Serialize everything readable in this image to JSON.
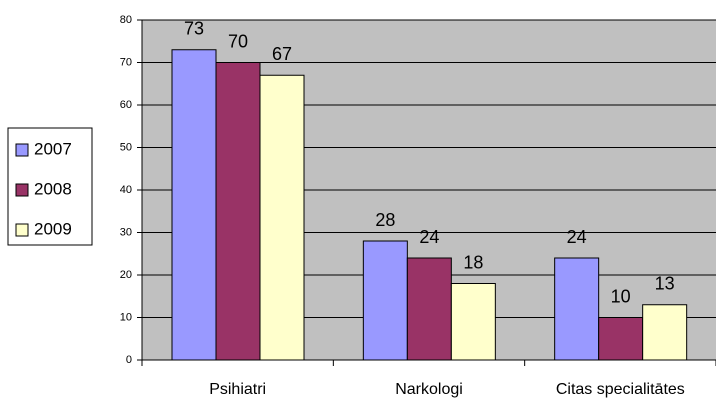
{
  "chart_data": {
    "type": "bar",
    "categories": [
      "Psihiatri",
      "Narkologi",
      "Citas specialitātes"
    ],
    "series": [
      {
        "name": "2007",
        "color": "#9999ff",
        "values": [
          73,
          28,
          24
        ]
      },
      {
        "name": "2008",
        "color": "#993366",
        "values": [
          70,
          24,
          10
        ]
      },
      {
        "name": "2009",
        "color": "#ffffcc",
        "values": [
          67,
          18,
          13
        ]
      }
    ],
    "ylim": [
      0,
      80
    ],
    "yticks": [
      0,
      10,
      20,
      30,
      40,
      50,
      60,
      70,
      80
    ],
    "grid": true,
    "legend": "left",
    "background": "#c0c0c0"
  }
}
